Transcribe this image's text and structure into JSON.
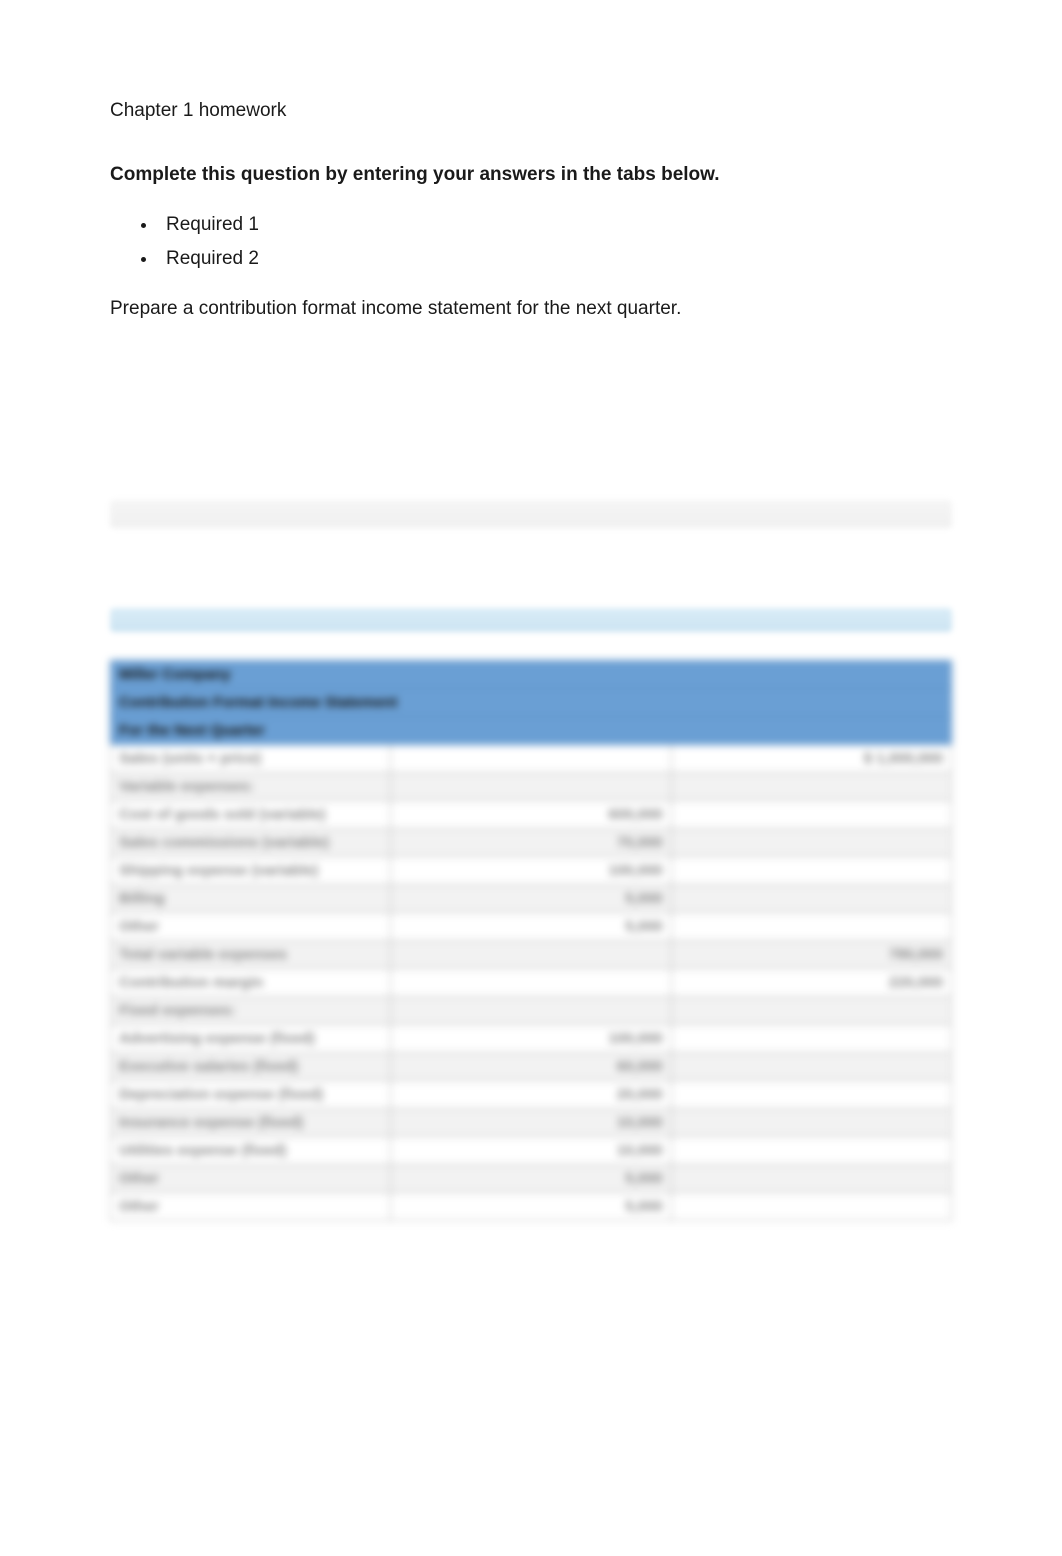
{
  "page_title": "Chapter 1 homework",
  "instruction": "Complete this question by entering your answers in the tabs below.",
  "required_items": [
    "Required 1",
    "Required 2"
  ],
  "prompt": "Prepare a contribution format income statement for the next quarter.",
  "table": {
    "header_bg": "#6a9fd4",
    "row_bg_even": "#ffffff",
    "row_bg_odd": "#f2f2f2",
    "border_color": "#bbbbbb",
    "header_lines": [
      "Miller Company",
      "Contribution Format Income Statement",
      "For the Next Quarter"
    ],
    "rows": [
      {
        "a": "Sales (units × price)",
        "b": "",
        "c": "$ 1,000,000"
      },
      {
        "a": "Variable expenses:",
        "b": "",
        "c": ""
      },
      {
        "a": "  Cost of goods sold (variable)",
        "b": "600,000",
        "c": ""
      },
      {
        "a": "  Sales commissions (variable)",
        "b": "70,000",
        "c": ""
      },
      {
        "a": "  Shipping expense (variable)",
        "b": "100,000",
        "c": ""
      },
      {
        "a": "  Billing",
        "b": "5,000",
        "c": ""
      },
      {
        "a": "  Other",
        "b": "5,000",
        "c": ""
      },
      {
        "a": "Total variable expenses",
        "b": "",
        "c": "780,000"
      },
      {
        "a": "Contribution margin",
        "b": "",
        "c": "220,000"
      },
      {
        "a": "Fixed expenses:",
        "b": "",
        "c": ""
      },
      {
        "a": "  Advertising expense (fixed)",
        "b": "100,000",
        "c": ""
      },
      {
        "a": "  Executive salaries (fixed)",
        "b": "60,000",
        "c": ""
      },
      {
        "a": "  Depreciation expense (fixed)",
        "b": "20,000",
        "c": ""
      },
      {
        "a": "  Insurance expense (fixed)",
        "b": "10,000",
        "c": ""
      },
      {
        "a": "  Utilities expense (fixed)",
        "b": "10,000",
        "c": ""
      },
      {
        "a": "  Other",
        "b": "5,000",
        "c": ""
      },
      {
        "a": "  Other",
        "b": "5,000",
        "c": ""
      }
    ]
  }
}
